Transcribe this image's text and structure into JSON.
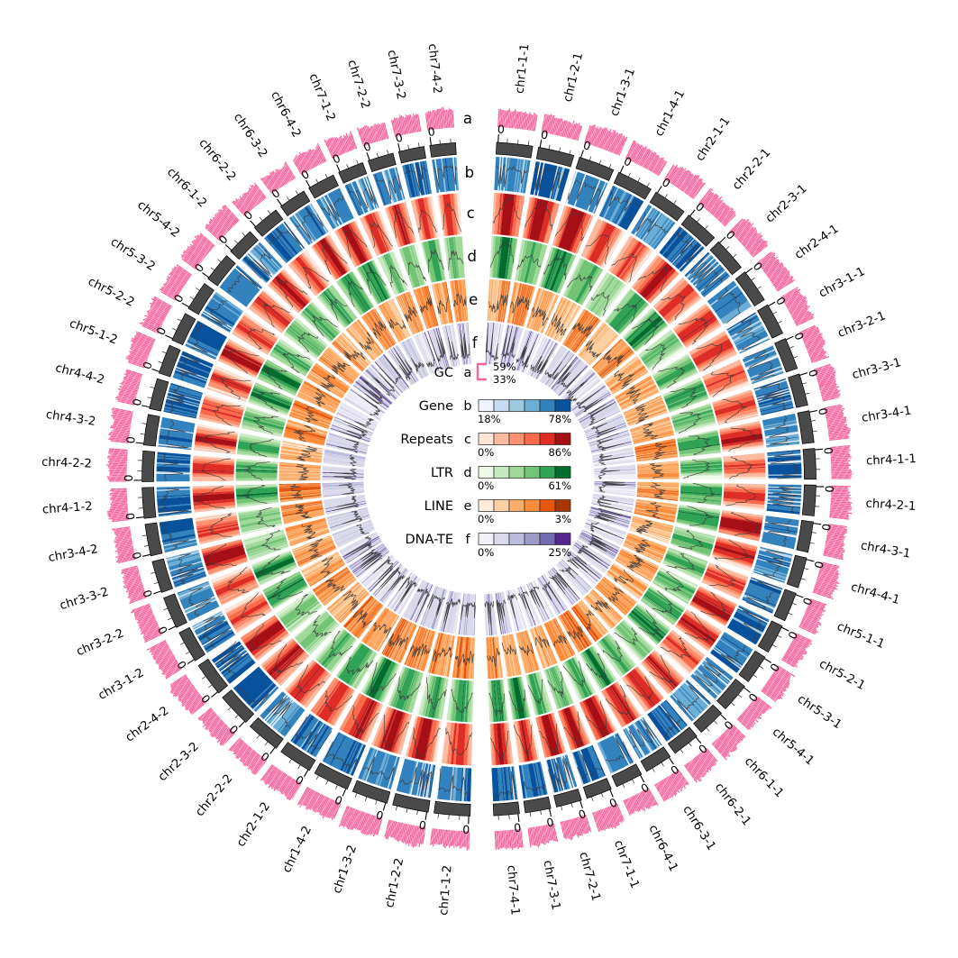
{
  "figure": {
    "kind": "circos-genome-plot",
    "background": "#ffffff"
  },
  "chart_data": {
    "type": "circos",
    "description": "Circular genome plot: 56 chromosome segments (haplotype 1 on right half clockwise from top, haplotype 2 on left half) with outer GC histogram ring, grey position ruler with 0 tick labels, and five heatmap+line density tracks.",
    "rings": [
      {
        "letter": "a",
        "name": "GC",
        "kind": "histogram",
        "color": "#F4649F",
        "legend_max": "59%",
        "legend_min": "33%"
      },
      {
        "letter": "b",
        "name": "Gene",
        "kind": "heatmap-line",
        "palette": [
          "#eff3ff",
          "#c6dbef",
          "#9ecae1",
          "#6baed6",
          "#3182bd",
          "#08519c"
        ],
        "legend_min": "18%",
        "legend_max": "78%",
        "profile": "gene"
      },
      {
        "letter": "c",
        "name": "Repeats",
        "kind": "heatmap-line",
        "palette": [
          "#fee5d9",
          "#fcbba1",
          "#fc9272",
          "#fb6a4a",
          "#de2d26",
          "#a50f15"
        ],
        "legend_min": "0%",
        "legend_max": "86%",
        "profile": "hump"
      },
      {
        "letter": "d",
        "name": "LTR",
        "kind": "heatmap-line",
        "palette": [
          "#edf8e9",
          "#c7e9c0",
          "#a1d99b",
          "#74c476",
          "#31a354",
          "#006d2c"
        ],
        "legend_min": "0%",
        "legend_max": "61%",
        "profile": "hump2"
      },
      {
        "letter": "e",
        "name": "LINE",
        "kind": "heatmap-line",
        "palette": [
          "#feedde",
          "#fdd0a2",
          "#fdae6b",
          "#fd8d3c",
          "#e6550d",
          "#a63603"
        ],
        "legend_min": "0%",
        "legend_max": "3%",
        "profile": "noisy"
      },
      {
        "letter": "f",
        "name": "DNA-TE",
        "kind": "heatmap-line",
        "palette": [
          "#f2f0f7",
          "#dadaeb",
          "#bcbddc",
          "#9e9ac8",
          "#756bb1",
          "#54278f"
        ],
        "legend_min": "0%",
        "legend_max": "25%",
        "profile": "low"
      }
    ],
    "segments_right": [
      "chr1-1-1",
      "chr1-2-1",
      "chr1-3-1",
      "chr1-4-1",
      "chr2-1-1",
      "chr2-2-1",
      "chr2-3-1",
      "chr2-4-1",
      "chr3-1-1",
      "chr3-2-1",
      "chr3-3-1",
      "chr3-4-1",
      "chr4-1-1",
      "chr4-2-1",
      "chr4-3-1",
      "chr4-4-1",
      "chr5-1-1",
      "chr5-2-1",
      "chr5-3-1",
      "chr5-4-1",
      "chr6-1-1",
      "chr6-2-1",
      "chr6-3-1",
      "chr6-4-1",
      "chr7-1-1",
      "chr7-2-1",
      "chr7-3-1",
      "chr7-4-1"
    ],
    "segments_left": [
      "chr1-1-2",
      "chr1-2-2",
      "chr1-3-2",
      "chr1-4-2",
      "chr2-1-2",
      "chr2-2-2",
      "chr2-3-2",
      "chr2-4-2",
      "chr3-1-2",
      "chr3-2-2",
      "chr3-3-2",
      "chr3-4-2",
      "chr4-1-2",
      "chr4-2-2",
      "chr4-3-2",
      "chr4-4-2",
      "chr5-1-2",
      "chr5-2-2",
      "chr5-3-2",
      "chr5-4-2",
      "chr6-1-2",
      "chr6-2-2",
      "chr6-3-2",
      "chr6-4-2",
      "chr7-1-2",
      "chr7-2-2",
      "chr7-3-2",
      "chr7-4-2"
    ],
    "chromosome_relative_sizes": [
      1.15,
      1.08,
      1.02,
      0.98,
      0.94,
      0.88,
      0.82
    ],
    "axis_zero_label": "0",
    "ruler_color": "#4a4a4a",
    "seed": 7
  }
}
